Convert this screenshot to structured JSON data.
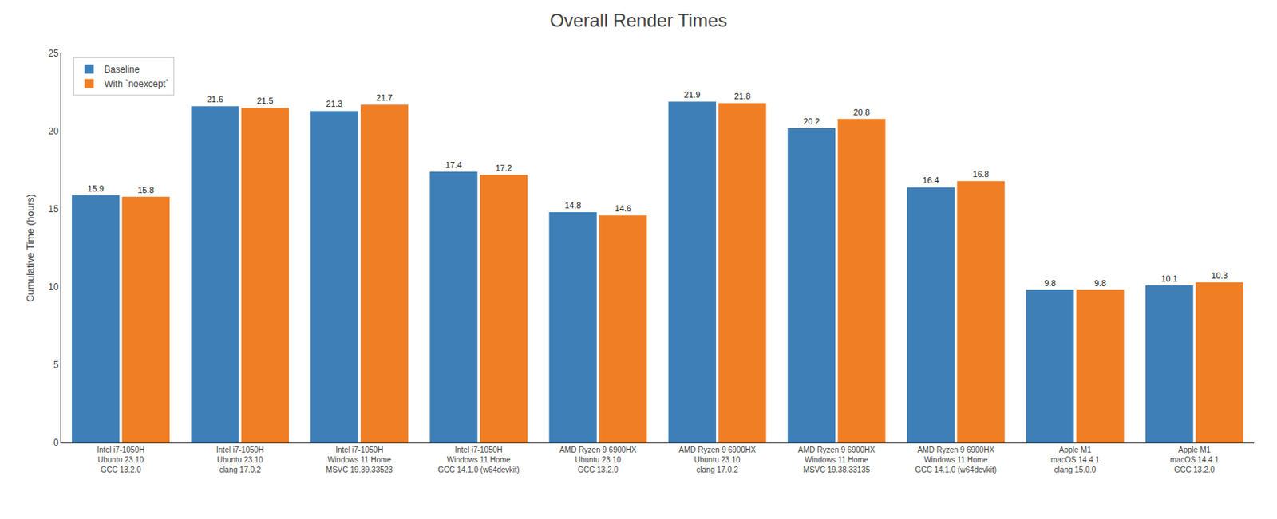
{
  "chart_data": {
    "type": "bar",
    "title": "Overall Render Times",
    "ylabel": "Cumulative Time (hours)",
    "categories": [
      "Intel i7-1050H\nUbuntu 23.10\nGCC 13.2.0",
      "Intel i7-1050H\nUbuntu 23.10\nclang 17.0.2",
      "Intel i7-1050H\nWindows 11 Home\nMSVC 19.39.33523",
      "Intel i7-1050H\nWindows 11 Home\nGCC 14.1.0 (w64devkit)",
      "AMD Ryzen 9 6900HX\nUbuntu 23.10\nGCC 13.2.0",
      "AMD Ryzen 9 6900HX\nUbuntu 23.10\nclang 17.0.2",
      "AMD Ryzen 9 6900HX\nWindows 11 Home\nMSVC 19.38.33135",
      "AMD Ryzen 9 6900HX\nWindows 11 Home\nGCC 14.1.0 (w64devkit)",
      "Apple M1\nmacOS 14.4.1\nclang 15.0.0",
      "Apple M1\nmacOS 14.4.1\nGCC 13.2.0"
    ],
    "series": [
      {
        "name": "Baseline",
        "color": "#3e7fb8",
        "values": [
          15.9,
          21.6,
          21.3,
          17.4,
          14.8,
          21.9,
          20.2,
          16.4,
          9.8,
          10.1
        ]
      },
      {
        "name": "With `noexcept`",
        "color": "#f07e25",
        "values": [
          15.8,
          21.5,
          21.7,
          17.2,
          14.6,
          21.8,
          20.8,
          16.8,
          9.8,
          10.3
        ]
      }
    ],
    "ylim": [
      0,
      25
    ],
    "yticks": [
      0,
      5,
      10,
      15,
      20,
      25
    ],
    "grid": false,
    "legend": "upper left",
    "data_labels": true
  }
}
